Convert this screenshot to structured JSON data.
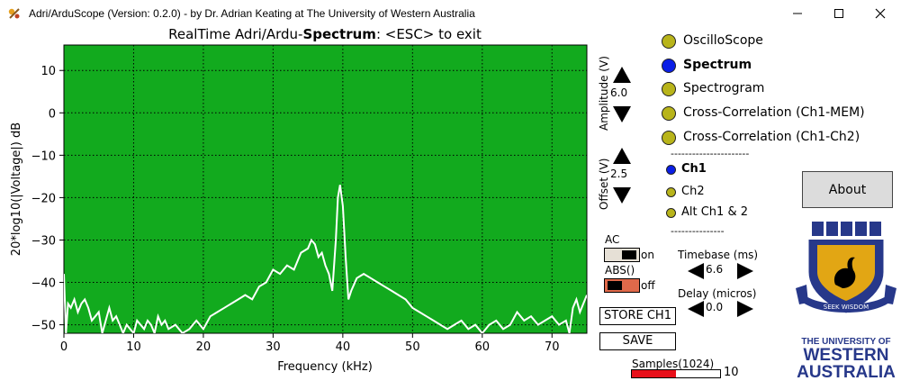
{
  "window": {
    "title": "Adri/ArduScope (Version: 0.2.0) - by Dr. Adrian Keating at The University of Western Australia",
    "min_icon": "minimize-icon",
    "max_icon": "maximize-icon",
    "close_icon": "close-icon"
  },
  "plot": {
    "title_prefix": "RealTime Adri/Ardu-",
    "title_bold": "Spectrum",
    "title_suffix": ": <ESC> to exit",
    "bg_color": "#12aa1e"
  },
  "chart_data": {
    "type": "line",
    "xlabel": "Frequency (kHz)",
    "ylabel": "20*log10(|Voltage|) dB",
    "xlim": [
      0,
      75
    ],
    "ylim": [
      -52,
      16
    ],
    "xticks": [
      "0",
      "10",
      "20",
      "30",
      "40",
      "50",
      "60",
      "70"
    ],
    "xtick_values": [
      0,
      10,
      20,
      30,
      40,
      50,
      60,
      70
    ],
    "yticks": [
      "10",
      "0",
      "−10",
      "−20",
      "−30",
      "−40",
      "−50"
    ],
    "ytick_values": [
      10,
      0,
      -10,
      -20,
      -30,
      -40,
      -50
    ],
    "grid": true,
    "series": [
      {
        "color": "#ffffff",
        "x": [
          0,
          0.3,
          0.6,
          1,
          1.5,
          2,
          2.5,
          3,
          3.5,
          4,
          4.5,
          5,
          5.5,
          6,
          6.5,
          7,
          7.5,
          8,
          8.5,
          9,
          9.5,
          10,
          10.5,
          11,
          11.5,
          12,
          12.5,
          13,
          13.5,
          14,
          14.5,
          15,
          16,
          17,
          18,
          19,
          20,
          21,
          22,
          23,
          24,
          25,
          26,
          27,
          28,
          29,
          30,
          31,
          32,
          33,
          34,
          35,
          35.5,
          36,
          36.5,
          37,
          37.5,
          38,
          38.5,
          39,
          39.3,
          39.6,
          40,
          40.4,
          40.8,
          41.2,
          42,
          43,
          44,
          45,
          46,
          47,
          48,
          49,
          50,
          51,
          52,
          53,
          54,
          55,
          56,
          57,
          58,
          59,
          60,
          61,
          62,
          63,
          64,
          65,
          66,
          67,
          68,
          69,
          70,
          71,
          72,
          72.5,
          73,
          73.5,
          74,
          74.5,
          75
        ],
        "y": [
          -38,
          -52,
          -45,
          -46,
          -44,
          -47,
          -45,
          -44,
          -46,
          -49,
          -48,
          -47,
          -52,
          -49,
          -46,
          -49,
          -48,
          -50,
          -52,
          -50,
          -51,
          -52,
          -49,
          -50,
          -51,
          -49,
          -50,
          -52,
          -48,
          -50,
          -49,
          -51,
          -50,
          -52,
          -51,
          -49,
          -51,
          -48,
          -47,
          -46,
          -45,
          -44,
          -43,
          -44,
          -41,
          -40,
          -37,
          -38,
          -36,
          -37,
          -33,
          -32,
          -30,
          -31,
          -34,
          -33,
          -36,
          -38,
          -42,
          -30,
          -20,
          -17,
          -22,
          -34,
          -44,
          -42,
          -39,
          -38,
          -39,
          -40,
          -41,
          -42,
          -43,
          -44,
          -46,
          -47,
          -48,
          -49,
          -50,
          -51,
          -50,
          -49,
          -51,
          -50,
          -52,
          -50,
          -49,
          -51,
          -50,
          -47,
          -49,
          -48,
          -50,
          -49,
          -48,
          -50,
          -49,
          -52,
          -46,
          -44,
          -47,
          -45,
          -43
        ]
      }
    ]
  },
  "amplitude": {
    "label": "Amplitude (V)",
    "value": "6.0",
    "up_icon": "up-triangle-icon",
    "down_icon": "down-triangle-icon"
  },
  "offset": {
    "label": "Offset (V)",
    "value": "2.5",
    "up_icon": "up-triangle-icon",
    "down_icon": "down-triangle-icon"
  },
  "modes": [
    {
      "label": "OscilloScope",
      "selected": false
    },
    {
      "label": "Spectrum",
      "selected": true
    },
    {
      "label": "Spectrogram",
      "selected": false
    },
    {
      "label": "Cross-Correlation (Ch1-MEM)",
      "selected": false
    },
    {
      "label": "Cross-Correlation (Ch1-Ch2)",
      "selected": false
    }
  ],
  "separator": "----------------------",
  "separator2": "---------------",
  "channels": [
    {
      "label": "Ch1",
      "selected": true
    },
    {
      "label": "Ch2",
      "selected": false
    },
    {
      "label": "Alt Ch1 & 2",
      "selected": false
    }
  ],
  "ac_toggle": {
    "label": "AC",
    "state": "on"
  },
  "abs_toggle": {
    "label": "ABS()",
    "state": "off"
  },
  "timebase": {
    "label": "Timebase (ms)",
    "value": "6.6"
  },
  "delay": {
    "label": "Delay (micros)",
    "value": "0.0"
  },
  "buttons": {
    "store": "STORE CH1",
    "save": "SAVE",
    "about": "About"
  },
  "samples": {
    "label": "Samples(1024)",
    "value": "10",
    "fill_fraction": 0.5
  },
  "logo": {
    "motto": "SEEK WISDOM",
    "line1": "THE UNIVERSITY OF",
    "line2": "WESTERN",
    "line3": "AUSTRALIA"
  },
  "colors": {
    "selected": "#0a1ee6",
    "unselected": "#b8b41a",
    "toggle_on": "#e6e0d6",
    "toggle_off": "#e0694a",
    "samples_fill": "#e8101a",
    "uwa_blue": "#27388a",
    "uwa_gold": "#e2a614"
  }
}
